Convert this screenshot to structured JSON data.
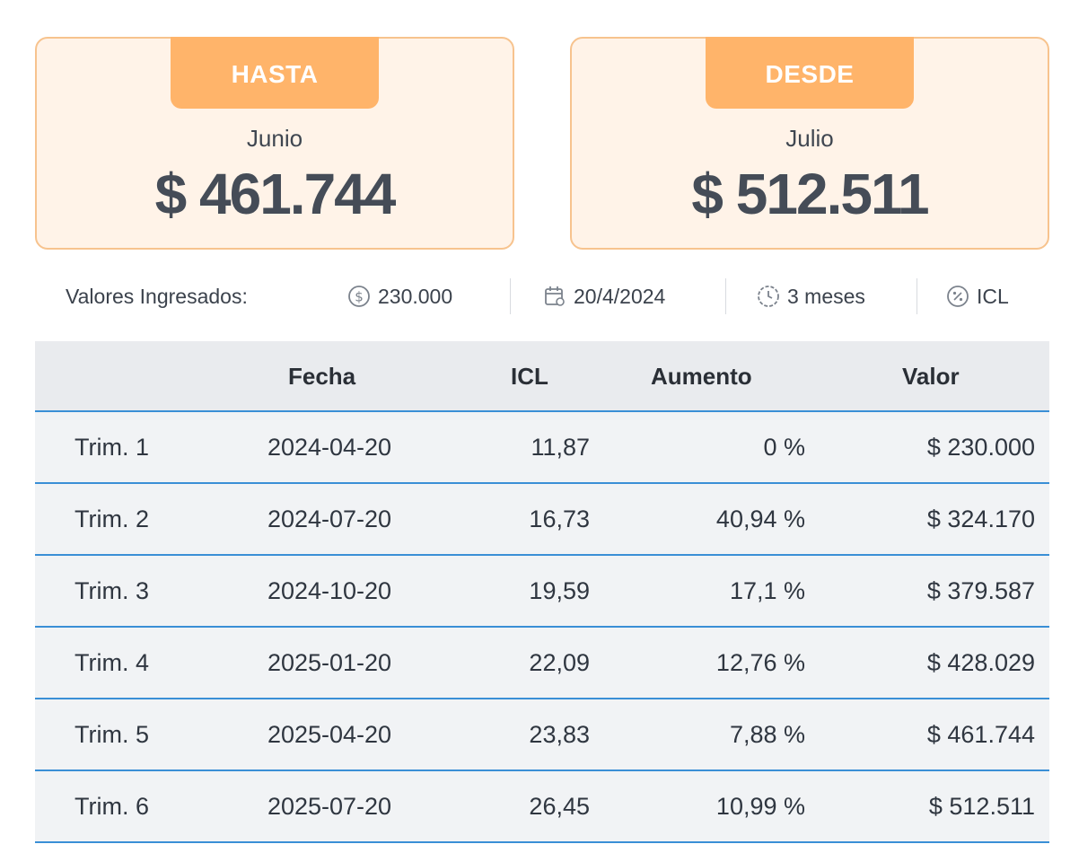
{
  "cards": {
    "hasta": {
      "tag": "HASTA",
      "month": "Junio",
      "amount": "$ 461.744"
    },
    "desde": {
      "tag": "DESDE",
      "month": "Julio",
      "amount": "$ 512.511"
    }
  },
  "inputs": {
    "label": "Valores Ingresados:",
    "amount": "230.000",
    "date": "20/4/2024",
    "period": "3 meses",
    "index": "ICL",
    "icons": [
      "dollar-circle-icon",
      "calendar-icon",
      "clock-icon",
      "percent-circle-icon"
    ]
  },
  "table": {
    "headers": [
      "",
      "Fecha",
      "ICL",
      "Aumento",
      "Valor"
    ],
    "rows": [
      [
        "Trim. 1",
        "2024-04-20",
        "11,87",
        "0 %",
        "$ 230.000"
      ],
      [
        "Trim. 2",
        "2024-07-20",
        "16,73",
        "40,94 %",
        "$ 324.170"
      ],
      [
        "Trim. 3",
        "2024-10-20",
        "19,59",
        "17,1 %",
        "$ 379.587"
      ],
      [
        "Trim. 4",
        "2025-01-20",
        "22,09",
        "12,76 %",
        "$ 428.029"
      ],
      [
        "Trim. 5",
        "2025-04-20",
        "23,83",
        "7,88 %",
        "$ 461.744"
      ],
      [
        "Trim. 6",
        "2025-07-20",
        "26,45",
        "10,99 %",
        "$ 512.511"
      ]
    ]
  },
  "colors": {
    "card_bg": "#fff3e8",
    "card_border": "#f7c38e",
    "tag_bg": "#ffb46a",
    "row_bg": "#f1f3f5",
    "row_divider": "#3a8fd6"
  }
}
